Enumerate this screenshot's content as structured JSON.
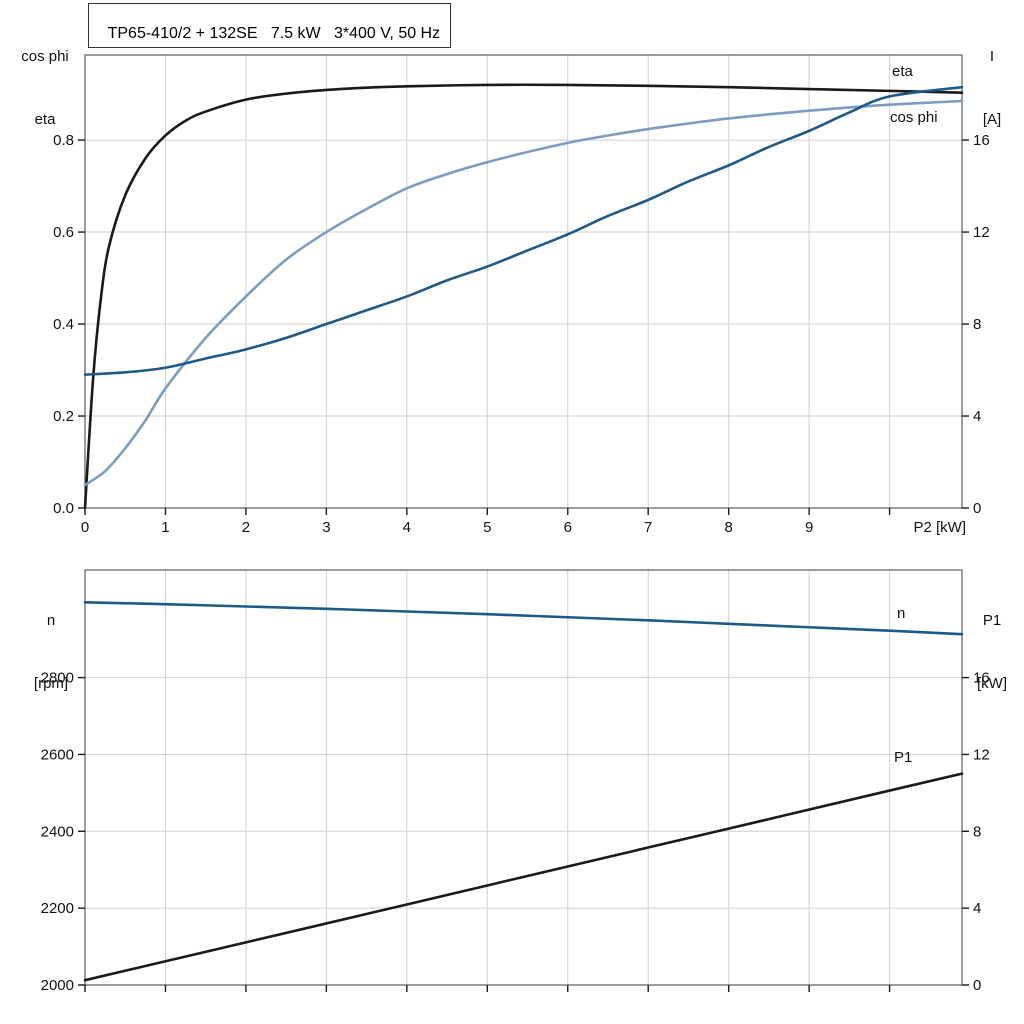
{
  "colors": {
    "black": "#1a1a1a",
    "dark_blue": "#1d5a87",
    "light_blue": "#7b9cc3",
    "grid": "#cfcfcf",
    "frame": "#5a5a5a"
  },
  "chart_data": [
    {
      "type": "line",
      "title": "TP65-410/2 + 132SE   7.5 kW   3*400 V, 50 Hz",
      "x_axis": {
        "label": "P2 [kW]",
        "min": 0,
        "max": 10.9,
        "ticks": [
          0,
          1,
          2,
          3,
          4,
          5,
          6,
          7,
          8,
          9,
          10
        ],
        "tick_labels": [
          "0",
          "1",
          "2",
          "3",
          "4",
          "5",
          "6",
          "7",
          "8",
          "9",
          ""
        ]
      },
      "left_axis": {
        "label_line1": "cos phi",
        "label_line2": "eta",
        "min": 0,
        "max": 0.985,
        "ticks": [
          0,
          0.2,
          0.4,
          0.6,
          0.8
        ],
        "tick_labels": [
          "0.0",
          "0.2",
          "0.4",
          "0.6",
          "0.8"
        ]
      },
      "right_axis": {
        "label_line1": "I",
        "label_line2": "[A]",
        "min": 0,
        "max": 19.7,
        "ticks": [
          0,
          4,
          8,
          12,
          16
        ],
        "tick_labels": [
          "0",
          "4",
          "8",
          "12",
          "16"
        ]
      },
      "legend_position": "curve-end-labels",
      "grid": true,
      "series": [
        {
          "name": "eta",
          "label": "eta",
          "axis": "left",
          "color": "black",
          "x": [
            0,
            0.1,
            0.2,
            0.3,
            0.5,
            0.75,
            1,
            1.25,
            1.5,
            2,
            2.5,
            3,
            3.5,
            4,
            5,
            6,
            7,
            8,
            9,
            10,
            10.9
          ],
          "y": [
            0,
            0.28,
            0.46,
            0.57,
            0.68,
            0.76,
            0.81,
            0.842,
            0.862,
            0.888,
            0.901,
            0.909,
            0.914,
            0.917,
            0.92,
            0.92,
            0.918,
            0.915,
            0.911,
            0.907,
            0.903
          ]
        },
        {
          "name": "cos-phi",
          "label": "cos phi",
          "axis": "left",
          "color": "light_blue",
          "x": [
            0,
            0.25,
            0.5,
            0.75,
            1,
            1.5,
            2,
            2.5,
            3,
            3.5,
            4,
            4.5,
            5,
            5.5,
            6,
            6.5,
            7,
            7.5,
            8,
            8.5,
            9,
            9.5,
            10,
            10.9
          ],
          "y": [
            0.05,
            0.08,
            0.13,
            0.19,
            0.26,
            0.37,
            0.46,
            0.54,
            0.6,
            0.65,
            0.695,
            0.726,
            0.752,
            0.774,
            0.794,
            0.81,
            0.824,
            0.836,
            0.847,
            0.856,
            0.864,
            0.871,
            0.877,
            0.885
          ]
        },
        {
          "name": "current",
          "label": "",
          "axis": "right",
          "color": "dark_blue",
          "x": [
            0,
            0.5,
            1,
            1.5,
            2,
            2.5,
            3,
            3.5,
            4,
            4.5,
            5,
            5.5,
            6,
            6.5,
            7,
            7.5,
            8,
            8.5,
            9,
            9.5,
            10,
            10.9
          ],
          "y": [
            5.8,
            5.9,
            6.1,
            6.5,
            6.9,
            7.4,
            8.0,
            8.6,
            9.2,
            9.9,
            10.5,
            11.2,
            11.9,
            12.7,
            13.4,
            14.2,
            14.9,
            15.7,
            16.4,
            17.2,
            17.9,
            18.3
          ]
        }
      ]
    },
    {
      "type": "line",
      "title": "",
      "x_axis": {
        "label": "",
        "min": 0,
        "max": 10.9,
        "ticks": [
          0,
          1,
          2,
          3,
          4,
          5,
          6,
          7,
          8,
          9,
          10
        ],
        "tick_labels": [
          "",
          "",
          "",
          "",
          "",
          "",
          "",
          "",
          "",
          "",
          ""
        ]
      },
      "left_axis": {
        "label_line1": "n",
        "label_line2": "[rpm]",
        "min": 2000,
        "max": 3080,
        "ticks": [
          2000,
          2200,
          2400,
          2600,
          2800
        ],
        "tick_labels": [
          "2000",
          "2200",
          "2400",
          "2600",
          "2800"
        ]
      },
      "right_axis": {
        "label_line1": "P1",
        "label_line2": "[kW]",
        "min": 0,
        "max": 21.6,
        "ticks": [
          0,
          4,
          8,
          12,
          16
        ],
        "tick_labels": [
          "0",
          "4",
          "8",
          "12",
          "16"
        ]
      },
      "legend_position": "curve-end-labels",
      "grid": true,
      "series": [
        {
          "name": "speed",
          "label": "n",
          "axis": "left",
          "color": "dark_blue",
          "x": [
            0,
            1,
            2,
            3,
            4,
            5,
            6,
            7,
            8,
            9,
            10,
            10.9
          ],
          "y": [
            2996,
            2991,
            2985,
            2979,
            2972,
            2965,
            2957,
            2949,
            2940,
            2931,
            2922,
            2913
          ]
        },
        {
          "name": "p1-power",
          "label": "P1",
          "axis": "right",
          "color": "black",
          "x": [
            0,
            2,
            4,
            6,
            8,
            10,
            10.9
          ],
          "y": [
            0.25,
            2.22,
            4.19,
            6.17,
            8.14,
            10.12,
            11.0
          ]
        }
      ]
    }
  ]
}
